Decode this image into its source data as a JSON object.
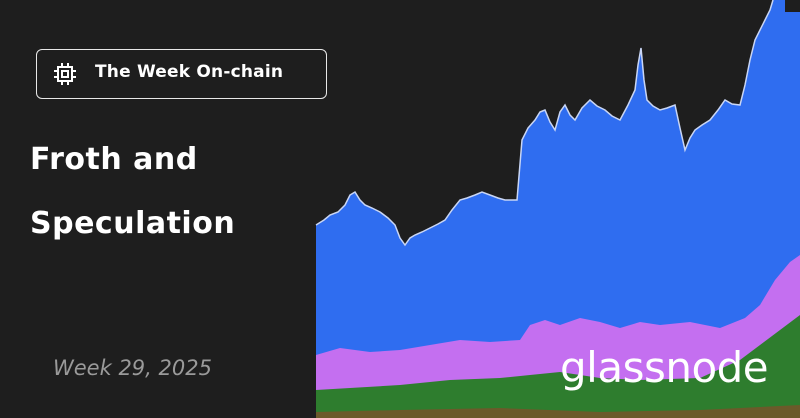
{
  "badge": {
    "label": "The Week On-chain"
  },
  "title": {
    "lines": [
      "Froth and",
      "Speculation"
    ]
  },
  "date": "Week 29, 2025",
  "logo": "glassnode"
}
